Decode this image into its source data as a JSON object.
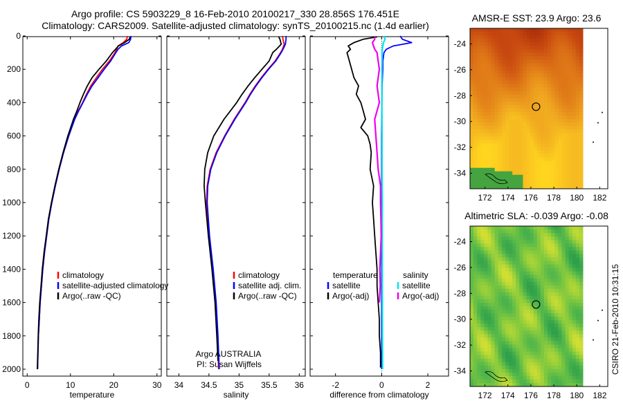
{
  "title": {
    "line1": "Argo profile: CS 5903229_8 16-Feb-2010 20100217_330 28.856S 176.451E",
    "line2": "Climatology: CARS2009. Satellite-adjusted climatology: synTS_20100215.nc (1.4d earlier)"
  },
  "credits": {
    "argo": "Argo AUSTRALIA",
    "pi": "PI: Susan Wijffels",
    "stamp": "CSIRO 21-Feb-2010 10:31:15"
  },
  "colors": {
    "climatology": "#ff0000",
    "satellite": "#0000ff",
    "argo": "#000000",
    "salinity_satellite": "#00e5ee",
    "salinity_argo": "#ee00ee"
  },
  "chart_data": [
    {
      "type": "line",
      "xlabel": "temperature",
      "xlim": [
        -1,
        31
      ],
      "ylim": [
        2070,
        0
      ],
      "x_ticks": [
        0,
        10,
        20,
        30
      ],
      "y_ticks": [
        0,
        200,
        400,
        600,
        800,
        1000,
        1200,
        1400,
        1600,
        1800,
        2000
      ],
      "legend": [
        "climatology",
        "satellite-adjusted climatology",
        "Argo(..raw -QC)"
      ],
      "series": [
        {
          "name": "climatology",
          "color": "#ff0000",
          "depth": [
            0,
            20,
            40,
            60,
            80,
            100,
            150,
            200,
            250,
            300,
            350,
            400,
            450,
            500,
            600,
            700,
            800,
            900,
            1000,
            1100,
            1200,
            1300,
            1400,
            1500,
            1600,
            1700,
            1800,
            1900,
            2000
          ],
          "values": [
            23.2,
            23.0,
            22.2,
            21.0,
            20.7,
            20.3,
            19.0,
            17.4,
            16.0,
            14.7,
            13.7,
            12.8,
            11.8,
            10.9,
            9.6,
            8.4,
            7.4,
            6.5,
            5.7,
            5.0,
            4.5,
            4.0,
            3.6,
            3.3,
            3.0,
            2.8,
            2.6,
            2.5,
            2.4
          ]
        },
        {
          "name": "satellite-adjusted climatology",
          "color": "#0000ff",
          "depth": [
            0,
            20,
            40,
            60,
            80,
            100,
            150,
            200,
            250,
            300,
            350,
            400,
            450,
            500,
            600,
            700,
            800,
            900,
            1000,
            1100,
            1200,
            1300,
            1400,
            1500,
            1600,
            1700,
            1800,
            1900,
            2000
          ],
          "values": [
            24.0,
            23.9,
            23.5,
            21.8,
            21.0,
            20.5,
            19.3,
            17.8,
            16.4,
            15.0,
            13.9,
            12.9,
            11.9,
            11.0,
            9.6,
            8.4,
            7.4,
            6.5,
            5.7,
            5.0,
            4.5,
            4.0,
            3.6,
            3.3,
            3.0,
            2.8,
            2.6,
            2.5,
            2.4
          ]
        },
        {
          "name": "Argo(..raw -QC)",
          "color": "#000000",
          "depth": [
            6,
            20,
            40,
            60,
            80,
            100,
            150,
            200,
            250,
            300,
            350,
            400,
            450,
            500,
            600,
            700,
            800,
            900,
            1000,
            1100,
            1200,
            1300,
            1400,
            1500,
            1600,
            1700,
            1800,
            1900,
            2000
          ],
          "values": [
            23.8,
            23.6,
            22.5,
            21.1,
            20.4,
            19.7,
            18.3,
            16.6,
            15.0,
            13.9,
            13.0,
            12.2,
            11.5,
            10.7,
            9.4,
            8.3,
            7.3,
            6.4,
            5.6,
            4.9,
            4.4,
            3.9,
            3.5,
            3.2,
            2.9,
            2.7,
            2.55,
            2.45,
            2.35
          ]
        }
      ]
    },
    {
      "type": "line",
      "xlabel": "salinity",
      "xlim": [
        33.8,
        36.1
      ],
      "ylim": [
        2070,
        0
      ],
      "x_ticks": [
        34,
        34.5,
        35,
        35.5,
        36
      ],
      "legend": [
        "climatology",
        "satellite adj. clim.",
        "Argo(..raw -QC)"
      ],
      "series": [
        {
          "name": "climatology",
          "color": "#ff0000",
          "depth": [
            0,
            20,
            50,
            80,
            100,
            150,
            200,
            250,
            300,
            350,
            400,
            500,
            600,
            700,
            800,
            900,
            1000,
            1200,
            1400,
            1600,
            1800,
            2000
          ],
          "values": [
            35.72,
            35.73,
            35.75,
            35.72,
            35.69,
            35.6,
            35.48,
            35.37,
            35.27,
            35.18,
            35.1,
            34.92,
            34.76,
            34.62,
            34.52,
            34.47,
            34.46,
            34.5,
            34.56,
            34.61,
            34.64,
            34.66
          ]
        },
        {
          "name": "satellite adj. clim.",
          "color": "#0000ff",
          "depth": [
            0,
            20,
            50,
            80,
            100,
            150,
            200,
            250,
            300,
            350,
            400,
            500,
            600,
            700,
            800,
            900,
            1000,
            1200,
            1400,
            1600,
            1800,
            2000
          ],
          "values": [
            35.78,
            35.78,
            35.77,
            35.73,
            35.7,
            35.61,
            35.49,
            35.38,
            35.28,
            35.19,
            35.11,
            34.93,
            34.77,
            34.63,
            34.53,
            34.48,
            34.47,
            34.51,
            34.57,
            34.62,
            34.65,
            34.67
          ]
        },
        {
          "name": "Argo(..raw -QC)",
          "color": "#000000",
          "depth": [
            6,
            20,
            50,
            80,
            100,
            150,
            200,
            250,
            300,
            350,
            400,
            500,
            600,
            700,
            800,
            900,
            1000,
            1200,
            1400,
            1600,
            1800,
            1950
          ],
          "values": [
            35.66,
            35.68,
            35.7,
            35.62,
            35.56,
            35.5,
            35.38,
            35.26,
            35.15,
            35.05,
            34.96,
            34.75,
            34.58,
            34.48,
            34.43,
            34.42,
            34.44,
            34.49,
            34.55,
            34.6,
            34.63,
            34.65
          ]
        }
      ]
    },
    {
      "type": "line",
      "xlabel": "difference from climatology",
      "xlim": [
        -3.1,
        2.9
      ],
      "ylim": [
        2070,
        0
      ],
      "x_ticks": [
        -2,
        0,
        2
      ],
      "legend": [
        "temperature",
        "satellite",
        "Argo(-adj)",
        "salinity",
        "satellite",
        "Argo(-adj)"
      ],
      "series": [
        {
          "name": "temperature satellite",
          "color": "#0000ff",
          "depth": [
            0,
            20,
            40,
            60,
            80,
            100,
            150,
            200,
            300,
            400,
            600,
            800,
            1000,
            1500,
            2000
          ],
          "values": [
            0.8,
            0.9,
            1.3,
            0.5,
            0.2,
            0.1,
            0.05,
            0.05,
            0.02,
            0.01,
            0.0,
            0.0,
            0.0,
            0.0,
            0.0
          ]
        },
        {
          "name": "temperature Argo(-adj)",
          "color": "#000000",
          "depth": [
            6,
            20,
            40,
            60,
            80,
            100,
            150,
            200,
            250,
            300,
            350,
            400,
            450,
            500,
            550,
            600,
            650,
            700,
            800,
            900,
            1000,
            1100,
            1200,
            1300,
            1400,
            1500,
            1600,
            1700,
            1800,
            1900,
            1990
          ],
          "values": [
            -0.2,
            -0.8,
            -1.2,
            -1.45,
            -1.35,
            -1.5,
            -1.4,
            -1.3,
            -1.2,
            -1.0,
            -1.1,
            -0.9,
            -0.8,
            -0.7,
            -0.9,
            -0.6,
            -0.5,
            -0.45,
            -0.5,
            -0.35,
            -0.4,
            -0.35,
            -0.3,
            -0.25,
            -0.2,
            -0.2,
            -0.15,
            -0.1,
            -0.1,
            -0.05,
            -0.05
          ]
        },
        {
          "name": "salinity satellite",
          "color": "#00e5ee",
          "depth": [
            0,
            20,
            40,
            60,
            80,
            100,
            200,
            400,
            600,
            800,
            1000,
            1500,
            2000
          ],
          "values": [
            0.1,
            0.15,
            0.08,
            0.05,
            0.03,
            0.02,
            0.01,
            0.01,
            0.02,
            0.02,
            0.03,
            0.03,
            0.04
          ]
        },
        {
          "name": "salinity Argo(-adj)",
          "color": "#ee00ee",
          "depth": [
            6,
            20,
            40,
            60,
            80,
            100,
            150,
            200,
            300,
            400,
            500,
            600,
            700,
            800,
            900,
            1000,
            1100,
            1200,
            1300,
            1400,
            1500,
            1600
          ],
          "values": [
            -0.3,
            -0.3,
            -0.4,
            -0.35,
            -0.3,
            -0.2,
            -0.15,
            -0.1,
            -0.2,
            -0.1,
            -0.3,
            -0.25,
            -0.2,
            -0.15,
            -0.05,
            -0.05,
            -0.03,
            -0.02,
            -0.05,
            -0.08,
            -0.06,
            -0.1
          ]
        }
      ]
    },
    {
      "type": "heatmap",
      "title": "AMSR-E SST: 23.9 Argo: 23.6",
      "x_ticks": [
        172,
        174,
        176,
        178,
        180,
        182
      ],
      "y_ticks": [
        -24,
        -26,
        -28,
        -30,
        -32,
        -34
      ],
      "xlim": [
        170.7,
        182.7
      ],
      "ylim": [
        -35.2,
        -22.8
      ],
      "marker": {
        "lon": 176.451,
        "lat": -28.856
      },
      "palette": [
        "#a52a0a",
        "#c84a10",
        "#e07a18",
        "#f0a820",
        "#ffd520",
        "#ffe830",
        "#39a040"
      ]
    },
    {
      "type": "heatmap",
      "title": "Altimetric SLA: -0.039 Argo: -0.08",
      "x_ticks": [
        172,
        174,
        176,
        178,
        180,
        182
      ],
      "y_ticks": [
        -24,
        -26,
        -28,
        -30,
        -32,
        -34
      ],
      "xlim": [
        170.7,
        182.7
      ],
      "ylim": [
        -35.2,
        -22.8
      ],
      "marker": {
        "lon": 176.451,
        "lat": -28.856
      },
      "palette": [
        "#2fa04a",
        "#55b84a",
        "#8ccc3c",
        "#c8dc34",
        "#f0e430"
      ]
    }
  ]
}
